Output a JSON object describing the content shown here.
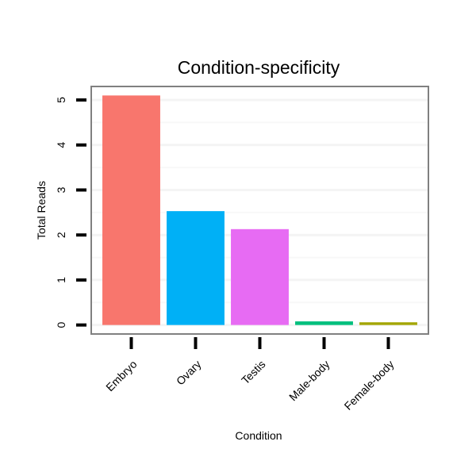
{
  "chart_data": {
    "type": "bar",
    "title": "Condition-specificity",
    "xlabel": "Condition",
    "ylabel": "Total Reads",
    "categories": [
      "Embryo",
      "Ovary",
      "Testis",
      "Male-body",
      "Female-body"
    ],
    "values": [
      5.1,
      2.53,
      2.13,
      0.08,
      0.06
    ],
    "colors": [
      "#F8766D",
      "#00B0F6",
      "#E76BF3",
      "#00BF7D",
      "#A3A500"
    ],
    "ylim": [
      -0.2,
      5.3
    ],
    "yticks": [
      0,
      1,
      2,
      3,
      4,
      5
    ],
    "grid": true,
    "legend": "none"
  }
}
